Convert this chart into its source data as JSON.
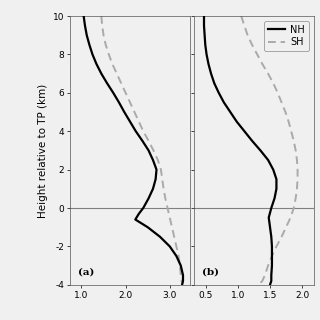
{
  "title": "",
  "ylabel": "Height relative to TP (km)",
  "ylim": [
    -4,
    10
  ],
  "yticks": [
    -4,
    -2,
    0,
    2,
    4,
    6,
    8,
    10
  ],
  "panel_a": {
    "label": "(a)",
    "xlabel_ticks": [
      1.0,
      2.0,
      3.0
    ],
    "xlim": [
      0.75,
      3.45
    ],
    "nh_x": [
      1.05,
      1.08,
      1.12,
      1.18,
      1.25,
      1.34,
      1.45,
      1.58,
      1.72,
      1.85,
      1.97,
      2.1,
      2.23,
      2.38,
      2.52,
      2.62,
      2.7,
      2.68,
      2.62,
      2.52,
      2.4,
      2.3,
      2.22,
      2.5,
      2.78,
      3.0,
      3.15,
      3.25,
      3.3,
      3.3,
      3.28
    ],
    "nh_y": [
      10,
      9.5,
      9.0,
      8.5,
      8.0,
      7.5,
      7.0,
      6.5,
      6.0,
      5.5,
      5.0,
      4.5,
      4.0,
      3.5,
      3.0,
      2.5,
      2.0,
      1.5,
      1.0,
      0.5,
      0.0,
      -0.3,
      -0.6,
      -1.0,
      -1.5,
      -2.0,
      -2.5,
      -3.0,
      -3.5,
      -3.8,
      -4.0
    ],
    "sh_x": [
      1.45,
      1.47,
      1.5,
      1.55,
      1.62,
      1.7,
      1.8,
      1.9,
      2.0,
      2.1,
      2.2,
      2.3,
      2.4,
      2.52,
      2.63,
      2.73,
      2.8,
      2.83,
      2.86,
      2.9,
      2.95,
      3.0,
      3.05,
      3.1,
      3.15,
      3.2,
      3.23,
      3.25,
      3.27,
      3.28,
      3.28
    ],
    "sh_y": [
      10,
      9.5,
      9.0,
      8.5,
      8.0,
      7.5,
      7.0,
      6.5,
      6.0,
      5.5,
      5.0,
      4.5,
      4.0,
      3.5,
      3.0,
      2.5,
      2.0,
      1.5,
      1.0,
      0.5,
      0.0,
      -0.5,
      -1.0,
      -1.5,
      -2.0,
      -2.5,
      -3.0,
      -3.5,
      -3.8,
      -3.9,
      -4.0
    ]
  },
  "panel_b": {
    "label": "(b)",
    "xlabel_ticks": [
      0.5,
      1.0,
      1.5,
      2.0
    ],
    "xlim": [
      0.32,
      2.18
    ],
    "nh_x": [
      0.47,
      0.47,
      0.48,
      0.49,
      0.51,
      0.54,
      0.58,
      0.63,
      0.7,
      0.78,
      0.88,
      0.98,
      1.1,
      1.22,
      1.35,
      1.47,
      1.55,
      1.6,
      1.6,
      1.57,
      1.52,
      1.48,
      1.5,
      1.52,
      1.53,
      1.53,
      1.53,
      1.52,
      1.52,
      1.51,
      1.5
    ],
    "nh_y": [
      10,
      9.5,
      9.0,
      8.5,
      8.0,
      7.5,
      7.0,
      6.5,
      6.0,
      5.5,
      5.0,
      4.5,
      4.0,
      3.5,
      3.0,
      2.5,
      2.0,
      1.5,
      1.0,
      0.5,
      0.0,
      -0.5,
      -1.0,
      -1.5,
      -2.0,
      -2.5,
      -3.0,
      -3.5,
      -3.8,
      -3.9,
      -4.0
    ],
    "sh_x": [
      1.05,
      1.1,
      1.15,
      1.22,
      1.3,
      1.38,
      1.47,
      1.55,
      1.62,
      1.68,
      1.74,
      1.79,
      1.83,
      1.87,
      1.9,
      1.92,
      1.93,
      1.93,
      1.92,
      1.9,
      1.87,
      1.82,
      1.75,
      1.68,
      1.6,
      1.53,
      1.47,
      1.42,
      1.38,
      1.35,
      1.33
    ],
    "sh_y": [
      10,
      9.5,
      9.0,
      8.5,
      8.0,
      7.5,
      7.0,
      6.5,
      6.0,
      5.5,
      5.0,
      4.5,
      4.0,
      3.5,
      3.0,
      2.5,
      2.0,
      1.5,
      1.0,
      0.5,
      0.0,
      -0.5,
      -1.0,
      -1.5,
      -2.0,
      -2.5,
      -3.0,
      -3.5,
      -3.8,
      -3.9,
      -4.0
    ]
  },
  "nh_color": "#000000",
  "sh_color": "#aaaaaa",
  "hline_color": "#808080",
  "bg_color": "#f0f0f0",
  "plot_bg": "#f0f0f0",
  "nh_lw": 1.6,
  "sh_lw": 1.4,
  "legend_fontsize": 7,
  "tick_fontsize": 6.5,
  "label_fontsize": 7.5
}
